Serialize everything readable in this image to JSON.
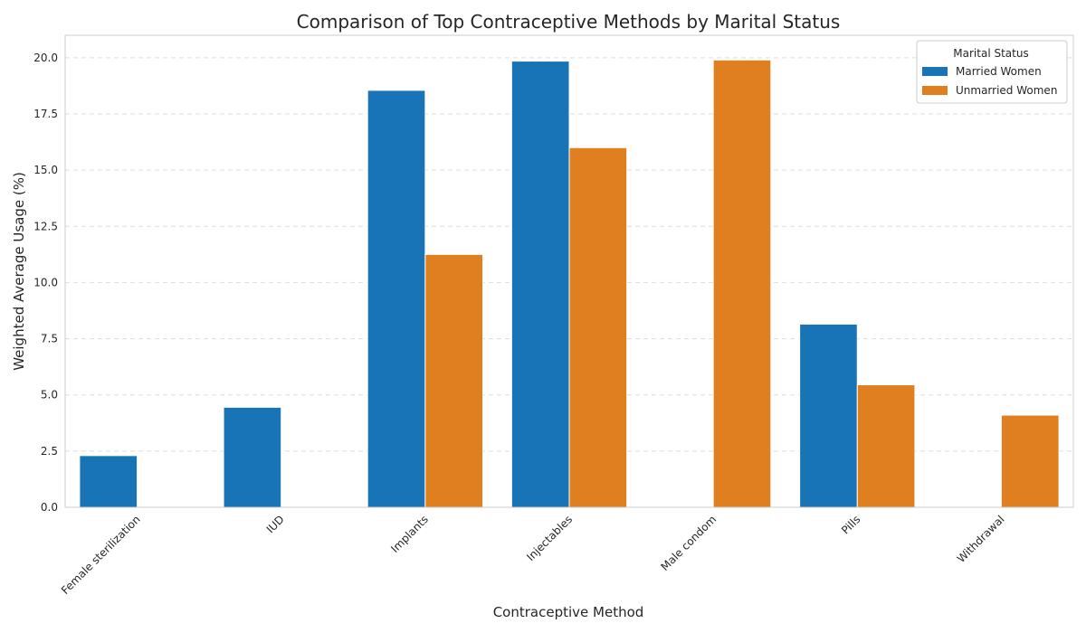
{
  "chart_data": {
    "type": "bar",
    "title": "Comparison of Top Contraceptive Methods by Marital Status",
    "xlabel": "Contraceptive Method",
    "ylabel": "Weighted Average Usage (%)",
    "ylim": [
      0,
      21
    ],
    "yticks": [
      "0.0",
      "2.5",
      "5.0",
      "7.5",
      "10.0",
      "12.5",
      "15.0",
      "17.5",
      "20.0"
    ],
    "grid": "y-dashed",
    "categories": [
      "Female sterilization",
      "IUD",
      "Implants",
      "Injectables",
      "Male condom",
      "Pills",
      "Withdrawal"
    ],
    "series": [
      {
        "name": "Married Women",
        "color": "#1874b7",
        "values": [
          2.3,
          4.45,
          18.55,
          19.85,
          null,
          8.15,
          null
        ]
      },
      {
        "name": "Unmarried Women",
        "color": "#e07f20",
        "values": [
          null,
          null,
          11.25,
          16.0,
          19.9,
          5.45,
          4.1
        ]
      }
    ],
    "legend": {
      "title": "Marital Status",
      "position": "top-right"
    }
  }
}
